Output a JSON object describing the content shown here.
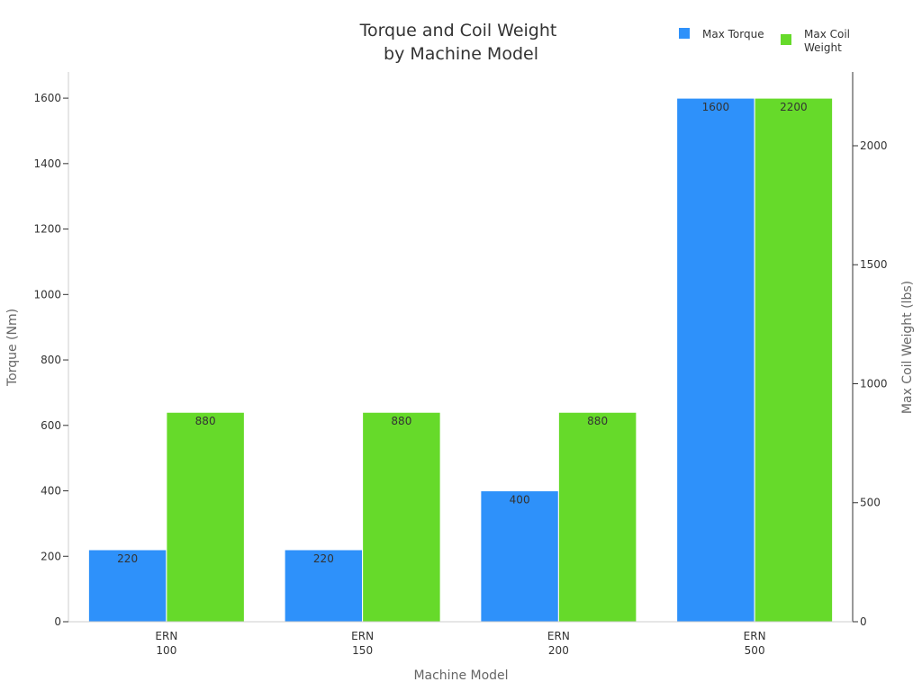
{
  "chart_data": {
    "type": "bar",
    "title": [
      "Torque and Coil Weight",
      "by Machine Model"
    ],
    "xlabel": "Machine Model",
    "categories": [
      [
        "ERN",
        "100"
      ],
      [
        "ERN",
        "150"
      ],
      [
        "ERN",
        "200"
      ],
      [
        "ERN",
        "500"
      ]
    ],
    "y_left": {
      "label": "Torque (Nm)",
      "lim": [
        0,
        1680
      ],
      "ticks": [
        0,
        200,
        400,
        600,
        800,
        1000,
        1200,
        1400,
        1600
      ]
    },
    "y_right": {
      "label": "Max Coil Weight (lbs)",
      "lim": [
        0,
        2310
      ],
      "ticks": [
        0,
        500,
        1000,
        1500,
        2000
      ]
    },
    "series": [
      {
        "name": "Max Torque",
        "axis": "left",
        "color": "#2e91fa",
        "values": [
          220,
          220,
          400,
          1600
        ]
      },
      {
        "name": "Max Coil Weight",
        "legend_lines": [
          "Max Coil",
          "Weight"
        ],
        "axis": "right",
        "color": "#66da2a",
        "values": [
          880,
          880,
          880,
          2200
        ]
      }
    ],
    "legend": "top-right",
    "grid": false
  }
}
